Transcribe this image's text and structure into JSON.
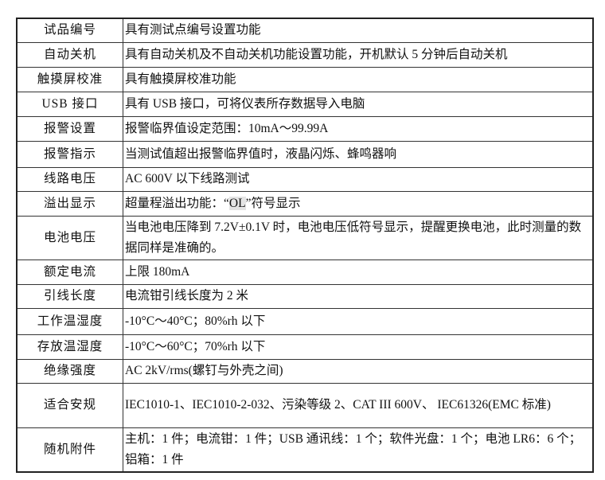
{
  "rows": [
    {
      "label": "试品编号",
      "value": "具有测试点编号设置功能"
    },
    {
      "label": "自动关机",
      "value": "具有自动关机及不自动关机功能设置功能，开机默认 5 分钟后自动关机"
    },
    {
      "label": "触摸屏校准",
      "value": "具有触摸屏校准功能"
    },
    {
      "label": "USB 接口",
      "value": "具有 USB 接口，可将仪表所存数据导入电脑"
    },
    {
      "label": "报警设置",
      "value": "报警临界值设定范围：10mA～99.99A"
    },
    {
      "label": "报警指示",
      "value": "当测试值超出报警临界值时，液晶闪烁、蜂鸣器响"
    },
    {
      "label": "线路电压",
      "value": "AC 600V 以下线路测试"
    },
    {
      "label": "溢出显示",
      "value_pre": "超量程溢出功能：“",
      "value_hl": "OL",
      "value_post": "”符号显示"
    },
    {
      "label": "电池电压",
      "value": "当电池电压降到 7.2V±0.1V 时，电池电压低符号显示，提醒更换电池，此时测量的数据同样是准确的。"
    },
    {
      "label": "额定电流",
      "value": "上限 180mA"
    },
    {
      "label": "引线长度",
      "value": "电流钳引线长度为 2 米"
    },
    {
      "label": "工作温湿度",
      "value": "-10°C～40°C；80%rh 以下"
    },
    {
      "label": "存放温湿度",
      "value": "-10°C～60°C；70%rh 以下"
    },
    {
      "label": "绝缘强度",
      "value": "AC 2kV/rms(螺钉与外壳之间)"
    },
    {
      "label": "适合安规",
      "value": "IEC1010-1、IEC1010-2-032、污染等级 2、CAT III 600V、 IEC61326(EMC 标准)"
    },
    {
      "label": "随机附件",
      "value": "主机：1 件；电流钳：1 件；USB 通讯线：1 个；软件光盘：1 个；电池 LR6：6 个；铝箱：1 件"
    }
  ]
}
